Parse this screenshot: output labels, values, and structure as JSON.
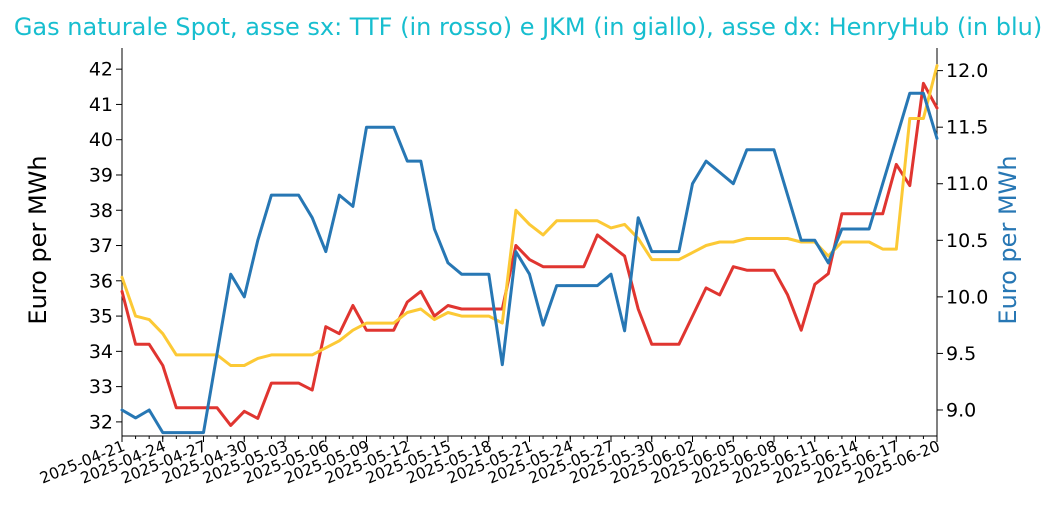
{
  "chart_data": {
    "type": "line",
    "title": "Gas naturale Spot, asse sx: TTF (in rosso) e JKM (in giallo), asse dx: HenryHub (in blu)",
    "ylabel": "Euro per MWh",
    "y2label": "Euro per MWh",
    "ylim": [
      31.6,
      42.6
    ],
    "y2lim": [
      8.77,
      12.2
    ],
    "yticks": [
      "32",
      "33",
      "34",
      "35",
      "36",
      "37",
      "38",
      "39",
      "40",
      "41",
      "42"
    ],
    "y2ticks": [
      "9.0",
      "9.5",
      "10.0",
      "10.5",
      "11.0",
      "11.5",
      "12.0"
    ],
    "xticks": [
      "2025-04-21",
      "2025-04-24",
      "2025-04-27",
      "2025-04-30",
      "2025-05-03",
      "2025-05-06",
      "2025-05-09",
      "2025-05-12",
      "2025-05-15",
      "2025-05-18",
      "2025-05-21",
      "2025-05-24",
      "2025-05-27",
      "2025-05-30",
      "2025-06-02",
      "2025-06-05",
      "2025-06-08",
      "2025-06-11",
      "2025-06-14",
      "2025-06-17",
      "2025-06-20"
    ],
    "x": [
      "2025-04-21",
      "2025-04-22",
      "2025-04-23",
      "2025-04-24",
      "2025-04-25",
      "2025-04-26",
      "2025-04-27",
      "2025-04-28",
      "2025-04-29",
      "2025-04-30",
      "2025-05-01",
      "2025-05-02",
      "2025-05-03",
      "2025-05-04",
      "2025-05-05",
      "2025-05-06",
      "2025-05-07",
      "2025-05-08",
      "2025-05-09",
      "2025-05-10",
      "2025-05-11",
      "2025-05-12",
      "2025-05-13",
      "2025-05-14",
      "2025-05-15",
      "2025-05-16",
      "2025-05-17",
      "2025-05-18",
      "2025-05-19",
      "2025-05-20",
      "2025-05-21",
      "2025-05-22",
      "2025-05-23",
      "2025-05-24",
      "2025-05-25",
      "2025-05-26",
      "2025-05-27",
      "2025-05-28",
      "2025-05-29",
      "2025-05-30",
      "2025-05-31",
      "2025-06-01",
      "2025-06-02",
      "2025-06-03",
      "2025-06-04",
      "2025-06-05",
      "2025-06-06",
      "2025-06-07",
      "2025-06-08",
      "2025-06-09",
      "2025-06-10",
      "2025-06-11",
      "2025-06-12",
      "2025-06-13",
      "2025-06-14",
      "2025-06-15",
      "2025-06-16",
      "2025-06-17",
      "2025-06-18",
      "2025-06-19",
      "2025-06-20"
    ],
    "series": [
      {
        "name": "TTF",
        "axis": "left",
        "color": "#e03530",
        "values": [
          35.7,
          34.2,
          34.2,
          33.6,
          32.4,
          32.4,
          32.4,
          32.4,
          31.9,
          32.3,
          32.1,
          33.1,
          33.1,
          33.1,
          32.9,
          34.7,
          34.5,
          35.3,
          34.6,
          34.6,
          34.6,
          35.4,
          35.7,
          35.0,
          35.3,
          35.2,
          35.2,
          35.2,
          35.2,
          37.0,
          36.6,
          36.4,
          36.4,
          36.4,
          36.4,
          37.3,
          37.0,
          36.7,
          35.2,
          34.2,
          34.2,
          34.2,
          35.0,
          35.8,
          35.6,
          36.4,
          36.3,
          36.3,
          36.3,
          35.6,
          34.6,
          35.9,
          36.2,
          37.9,
          37.9,
          37.9,
          37.9,
          39.3,
          38.7,
          41.6,
          40.9
        ]
      },
      {
        "name": "JKM",
        "axis": "left",
        "color": "#fcc935",
        "values": [
          36.1,
          35.0,
          34.9,
          34.5,
          33.9,
          33.9,
          33.9,
          33.9,
          33.6,
          33.6,
          33.8,
          33.9,
          33.9,
          33.9,
          33.9,
          34.1,
          34.3,
          34.6,
          34.8,
          34.8,
          34.8,
          35.1,
          35.2,
          34.9,
          35.1,
          35.0,
          35.0,
          35.0,
          34.8,
          38.0,
          37.6,
          37.3,
          37.7,
          37.7,
          37.7,
          37.7,
          37.5,
          37.6,
          37.2,
          36.6,
          36.6,
          36.6,
          36.8,
          37.0,
          37.1,
          37.1,
          37.2,
          37.2,
          37.2,
          37.2,
          37.1,
          37.1,
          36.7,
          37.1,
          37.1,
          37.1,
          36.9,
          36.9,
          40.6,
          40.6,
          42.1
        ]
      },
      {
        "name": "HenryHub",
        "axis": "right",
        "color": "#2777b4",
        "values": [
          9.0,
          8.93,
          9.0,
          8.8,
          8.8,
          8.8,
          8.8,
          9.5,
          10.2,
          10.0,
          10.5,
          10.9,
          10.9,
          10.9,
          10.7,
          10.4,
          10.9,
          10.8,
          11.5,
          11.5,
          11.5,
          11.2,
          11.2,
          10.6,
          10.3,
          10.2,
          10.2,
          10.2,
          9.4,
          10.4,
          10.2,
          9.75,
          10.1,
          10.1,
          10.1,
          10.1,
          10.2,
          9.7,
          10.7,
          10.4,
          10.4,
          10.4,
          11.0,
          11.2,
          11.1,
          11.0,
          11.3,
          11.3,
          11.3,
          10.9,
          10.5,
          10.5,
          10.3,
          10.6,
          10.6,
          10.6,
          11.0,
          11.4,
          11.8,
          11.8,
          11.4
        ]
      }
    ]
  },
  "colors": {
    "title": "#17becf",
    "left_label": "#000000",
    "right_label": "#2777b4"
  }
}
